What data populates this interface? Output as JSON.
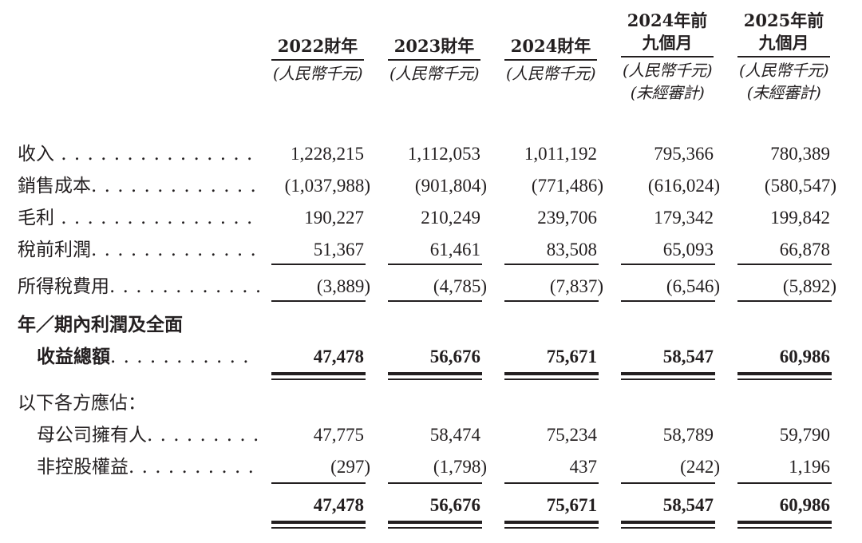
{
  "columns": [
    {
      "year": "2022財年",
      "subtitle": "",
      "unit": "(人民幣千元)",
      "note": ""
    },
    {
      "year": "2023財年",
      "subtitle": "",
      "unit": "(人民幣千元)",
      "note": ""
    },
    {
      "year": "2024財年",
      "subtitle": "",
      "unit": "(人民幣千元)",
      "note": ""
    },
    {
      "year": "2024年前",
      "subtitle": "九個月",
      "unit": "(人民幣千元)",
      "note": "(未經審計)"
    },
    {
      "year": "2025年前",
      "subtitle": "九個月",
      "unit": "(人民幣千元)",
      "note": "(未經審計)"
    }
  ],
  "rows": [
    {
      "label": "收入",
      "leader": " . . . . . . . . . . . . . . .",
      "values": [
        "1,228,215",
        "1,112,053",
        "1,011,192",
        "795,366",
        "780,389"
      ]
    },
    {
      "label": "銷售成本",
      "leader": ". . . . . . . . . . . . .",
      "values": [
        "(1,037,988)",
        "(901,804)",
        "(771,486)",
        "(616,024)",
        "(580,547)"
      ]
    },
    {
      "label": "毛利",
      "leader": " . . . . . . . . . . . . . . .",
      "values": [
        "190,227",
        "210,249",
        "239,706",
        "179,342",
        "199,842"
      ]
    },
    {
      "label": "稅前利潤",
      "leader": ". . . . . . . . . . . . .",
      "values": [
        "51,367",
        "61,461",
        "83,508",
        "65,093",
        "66,878"
      ]
    },
    {
      "label": "所得稅費用",
      "leader": ". . . . . . . . . . . .",
      "values": [
        "(3,889)",
        "(4,785)",
        "(7,837)",
        "(6,546)",
        "(5,892)"
      ]
    },
    {
      "label": "年／期內利潤及全面",
      "leader": "",
      "values": [
        "",
        "",
        "",
        "",
        ""
      ]
    },
    {
      "label": "收益總額",
      "leader": ". . . . . . . . . . .",
      "values": [
        "47,478",
        "56,676",
        "75,671",
        "58,547",
        "60,986"
      ]
    },
    {
      "label": "以下各方應佔：",
      "leader": "",
      "values": [
        "",
        "",
        "",
        "",
        ""
      ]
    },
    {
      "label": "母公司擁有人",
      "leader": ". . . . . . . . .",
      "values": [
        "47,775",
        "58,474",
        "75,234",
        "58,789",
        "59,790"
      ]
    },
    {
      "label": "非控股權益",
      "leader": ". . . . . . . . . .",
      "values": [
        "(297)",
        "(1,798)",
        "437",
        "(242)",
        "1,196"
      ]
    },
    {
      "label": "",
      "leader": "",
      "values": [
        "47,478",
        "56,676",
        "75,671",
        "58,547",
        "60,986"
      ]
    }
  ]
}
